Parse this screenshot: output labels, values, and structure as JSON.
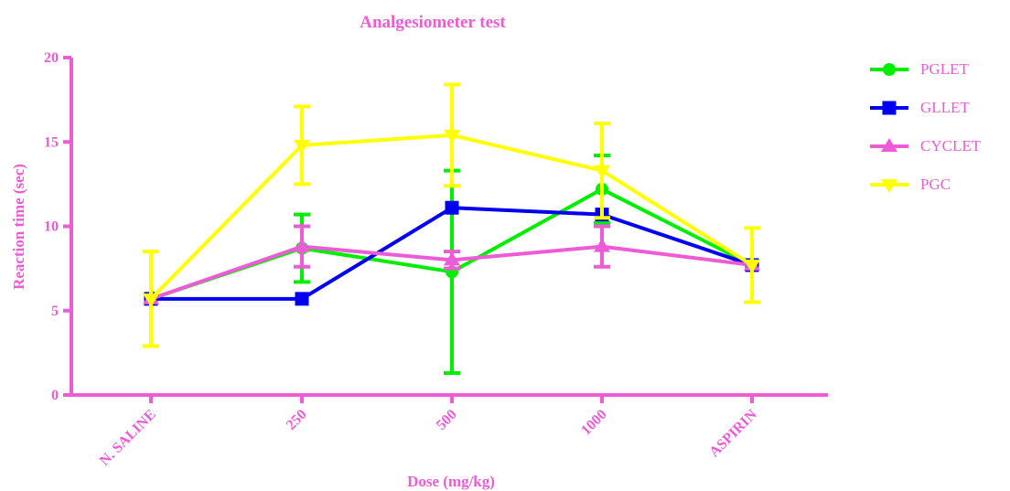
{
  "chart_data": {
    "type": "line",
    "title": "Analgesiometer test",
    "xlabel": "Dose (mg/kg)",
    "ylabel": "Reaction time (sec)",
    "ylim": [
      0,
      20
    ],
    "yticks": [
      "0",
      "5",
      "10",
      "15",
      "20"
    ],
    "categories": [
      "N. SALINE",
      "250",
      "500",
      "1000",
      "ASPIRIN"
    ],
    "legend_position": "top-right",
    "axis_color": "#ee5bd6",
    "series": [
      {
        "name": "PGLET",
        "color": "#00ee00",
        "marker": "circle",
        "values": [
          5.7,
          8.7,
          7.3,
          12.2,
          7.7
        ],
        "errors": [
          0,
          2.0,
          6.0,
          2.0,
          0
        ]
      },
      {
        "name": "GLLET",
        "color": "#0000ee",
        "marker": "square",
        "values": [
          5.7,
          5.7,
          11.1,
          10.7,
          7.7
        ],
        "errors": [
          0,
          0,
          0,
          0,
          0
        ]
      },
      {
        "name": "CYCLET",
        "color": "#ee5bd6",
        "marker": "triangle-up",
        "values": [
          5.7,
          8.8,
          8.0,
          8.8,
          7.7
        ],
        "errors": [
          0,
          1.2,
          0.5,
          1.2,
          0
        ]
      },
      {
        "name": "PGC",
        "color": "#ffff00",
        "marker": "triangle-down",
        "values": [
          5.7,
          14.8,
          15.4,
          13.3,
          7.7
        ],
        "errors": [
          2.8,
          2.3,
          3.0,
          2.8,
          2.2
        ]
      }
    ]
  }
}
